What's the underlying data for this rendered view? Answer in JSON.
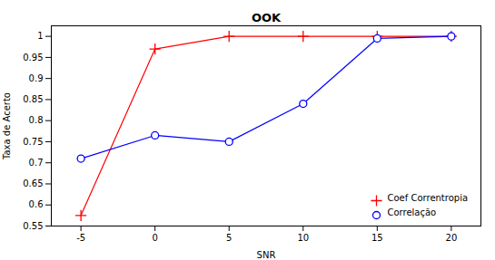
{
  "chart_data": {
    "type": "line",
    "title": "OOK",
    "xlabel": "SNR",
    "ylabel": "Taxa de Acerto",
    "x": [
      -5,
      0,
      5,
      10,
      15,
      20
    ],
    "series": [
      {
        "name": "Coef Correntropia",
        "color": "#FF0000",
        "marker": "plus",
        "values": [
          0.575,
          0.97,
          1.0,
          1.0,
          1.0,
          1.0
        ]
      },
      {
        "name": "Correlação",
        "color": "#0000FF",
        "marker": "circle",
        "values": [
          0.71,
          0.765,
          0.75,
          0.84,
          0.995,
          1.0
        ]
      }
    ],
    "xlim": [
      -7,
      22
    ],
    "xticks": [
      -5,
      0,
      5,
      10,
      15,
      20
    ],
    "ylim": [
      0.55,
      1.025
    ],
    "yticks": [
      0.55,
      0.6,
      0.65,
      0.7,
      0.75,
      0.8,
      0.85,
      0.9,
      0.95,
      1
    ],
    "grid": false,
    "legend": "lower right"
  }
}
